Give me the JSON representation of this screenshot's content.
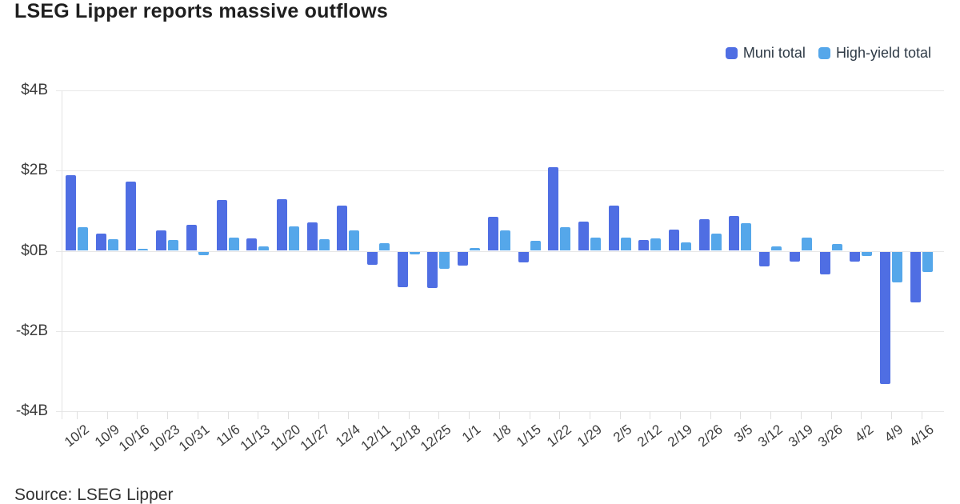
{
  "title": "LSEG Lipper reports massive outflows",
  "source": "Source: LSEG Lipper",
  "colors": {
    "muni": "#4f6ee3",
    "high_yield": "#55a7ea",
    "grid": "#e7e7e7",
    "axis_text": "#3c3c3c",
    "title_text": "#1f1f1f"
  },
  "chart_data": {
    "type": "bar",
    "title": "LSEG Lipper reports massive outflows",
    "xlabel": "",
    "ylabel": "",
    "ylim": [
      -4,
      4
    ],
    "grid": true,
    "legend_position": "top-right",
    "y_ticks": [
      {
        "value": 4,
        "label": "$4B"
      },
      {
        "value": 2,
        "label": "$2B"
      },
      {
        "value": 0,
        "label": "$0B"
      },
      {
        "value": -2,
        "label": "-$2B"
      },
      {
        "value": -4,
        "label": "-$4B"
      }
    ],
    "categories": [
      "10/2",
      "10/9",
      "10/16",
      "10/23",
      "10/31",
      "11/6",
      "11/13",
      "11/20",
      "11/27",
      "12/4",
      "12/11",
      "12/18",
      "12/25",
      "1/1",
      "1/8",
      "1/15",
      "1/22",
      "1/29",
      "2/5",
      "2/12",
      "2/19",
      "2/26",
      "3/5",
      "3/12",
      "3/19",
      "3/26",
      "4/2",
      "4/9",
      "4/16"
    ],
    "series": [
      {
        "name": "Muni total",
        "color": "#4f6ee3",
        "values": [
          1.88,
          0.42,
          1.72,
          0.5,
          0.64,
          1.27,
          0.3,
          1.28,
          0.7,
          1.13,
          -0.33,
          -0.88,
          -0.9,
          -0.35,
          0.84,
          -0.26,
          2.08,
          0.73,
          1.13,
          0.26,
          0.53,
          0.78,
          0.87,
          -0.36,
          -0.24,
          -0.56,
          -0.25,
          -3.3,
          -1.26
        ]
      },
      {
        "name": "High-yield total",
        "color": "#55a7ea",
        "values": [
          0.58,
          0.29,
          0.04,
          0.26,
          -0.09,
          0.32,
          0.1,
          0.6,
          0.28,
          0.51,
          0.18,
          -0.07,
          -0.42,
          0.06,
          0.51,
          0.24,
          0.58,
          0.33,
          0.33,
          0.3,
          0.21,
          0.42,
          0.69,
          0.11,
          0.32,
          0.16,
          -0.11,
          -0.77,
          -0.5
        ]
      }
    ]
  }
}
